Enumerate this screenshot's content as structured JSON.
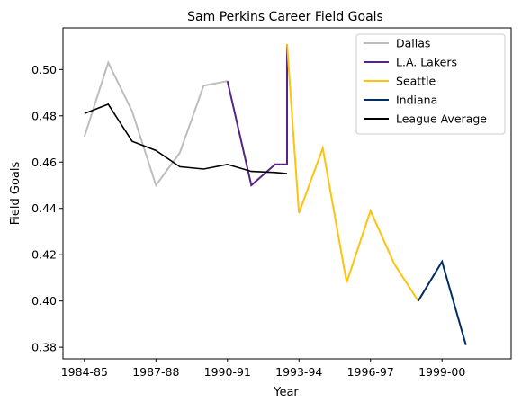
{
  "chart_data": {
    "type": "line",
    "title": "Sam Perkins Career Field Goals",
    "xlabel": "Year",
    "ylabel": "Field Goals",
    "x_tick_labels": [
      "1984-85",
      "1987-88",
      "1990-91",
      "1993-94",
      "1996-97",
      "1999-00"
    ],
    "y_tick_labels": [
      "0.38",
      "0.40",
      "0.42",
      "0.44",
      "0.46",
      "0.48",
      "0.50"
    ],
    "y_ticks": [
      0.38,
      0.4,
      0.42,
      0.44,
      0.46,
      0.48,
      0.5
    ],
    "xlim": [
      -0.9,
      17.9
    ],
    "ylim": [
      0.375,
      0.518
    ],
    "grid": false,
    "legend_position": "top-right",
    "series": [
      {
        "name": "Dallas",
        "color": "#bdbdbd",
        "x": [
          0,
          1,
          2,
          3,
          4,
          5,
          6
        ],
        "y": [
          0.471,
          0.503,
          0.482,
          0.45,
          0.464,
          0.493,
          0.495
        ]
      },
      {
        "name": "L.A. Lakers",
        "color": "#552583",
        "x": [
          6,
          7,
          8,
          8.5,
          8.5
        ],
        "y": [
          0.495,
          0.45,
          0.459,
          0.459,
          0.511
        ]
      },
      {
        "name": "Seattle",
        "color": "#ffc20e",
        "x": [
          8.5,
          9,
          10,
          11,
          12,
          13,
          14
        ],
        "y": [
          0.511,
          0.438,
          0.466,
          0.408,
          0.439,
          0.416,
          0.4
        ]
      },
      {
        "name": "Indiana",
        "color": "#002d62",
        "x": [
          14,
          15,
          16
        ],
        "y": [
          0.4,
          0.417,
          0.381
        ]
      },
      {
        "name": "League Average",
        "color": "#000000",
        "x": [
          0,
          1,
          2,
          3,
          4,
          5,
          6,
          7,
          8,
          8.5
        ],
        "y": [
          0.481,
          0.485,
          0.469,
          0.465,
          0.458,
          0.457,
          0.459,
          0.456,
          0.4555,
          0.455
        ]
      }
    ]
  }
}
